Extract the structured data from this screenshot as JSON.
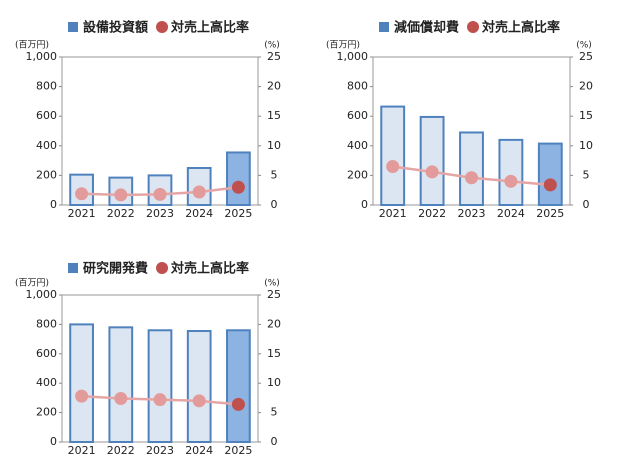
{
  "chart_data": [
    {
      "type": "bar",
      "y_unit": "(百万円)",
      "y2_unit": "(%)",
      "categories": [
        "2021",
        "2022",
        "2023",
        "2024",
        "2025"
      ],
      "series": [
        {
          "name": "設備投資額",
          "type": "bar",
          "color": "#4f81bd",
          "colors": [
            "#dce6f2",
            "#dce6f2",
            "#dce6f2",
            "#dce6f2",
            "#8db3e2"
          ],
          "values": [
            205,
            185,
            200,
            250,
            355
          ]
        },
        {
          "name": "対売上高比率",
          "type": "line",
          "axis": "y2",
          "color": "#c0504d",
          "line_color": "#e6a5a5",
          "colors": [
            "#e39a9a",
            "#e39a9a",
            "#e39a9a",
            "#e39a9a",
            "#c0504d"
          ],
          "values": [
            1.9,
            1.7,
            1.8,
            2.2,
            3.0
          ]
        }
      ],
      "ylim": [
        0,
        1000
      ],
      "yticks": [
        0,
        200,
        400,
        600,
        800,
        {
          "value": 1000,
          "label": "1,000"
        }
      ],
      "y2lim": [
        0,
        25
      ],
      "y2ticks": [
        0,
        5,
        10,
        15,
        20,
        25
      ]
    },
    {
      "type": "bar",
      "y_unit": "(百万円)",
      "y2_unit": "(%)",
      "categories": [
        "2021",
        "2022",
        "2023",
        "2024",
        "2025"
      ],
      "series": [
        {
          "name": "減価償却費",
          "type": "bar",
          "color": "#4f81bd",
          "colors": [
            "#dce6f2",
            "#dce6f2",
            "#dce6f2",
            "#dce6f2",
            "#8db3e2"
          ],
          "values": [
            665,
            595,
            490,
            440,
            415
          ]
        },
        {
          "name": "対売上高比率",
          "type": "line",
          "axis": "y2",
          "color": "#c0504d",
          "line_color": "#e6a5a5",
          "colors": [
            "#e39a9a",
            "#e39a9a",
            "#e39a9a",
            "#e39a9a",
            "#c0504d"
          ],
          "values": [
            6.5,
            5.6,
            4.6,
            4.0,
            3.4
          ]
        }
      ],
      "ylim": [
        0,
        1000
      ],
      "yticks": [
        0,
        200,
        400,
        600,
        800,
        {
          "value": 1000,
          "label": "1,000"
        }
      ],
      "y2lim": [
        0,
        25
      ],
      "y2ticks": [
        0,
        5,
        10,
        15,
        20,
        25
      ]
    },
    {
      "type": "bar",
      "y_unit": "(百万円)",
      "y2_unit": "(%)",
      "categories": [
        "2021",
        "2022",
        "2023",
        "2024",
        "2025"
      ],
      "series": [
        {
          "name": "研究開発費",
          "type": "bar",
          "color": "#4f81bd",
          "colors": [
            "#dce6f2",
            "#dce6f2",
            "#dce6f2",
            "#dce6f2",
            "#8db3e2"
          ],
          "values": [
            800,
            780,
            760,
            755,
            760
          ]
        },
        {
          "name": "対売上高比率",
          "type": "line",
          "axis": "y2",
          "color": "#c0504d",
          "line_color": "#e6a5a5",
          "colors": [
            "#e39a9a",
            "#e39a9a",
            "#e39a9a",
            "#e39a9a",
            "#c0504d"
          ],
          "values": [
            7.8,
            7.4,
            7.2,
            7.0,
            6.4
          ]
        }
      ],
      "ylim": [
        0,
        1000
      ],
      "yticks": [
        0,
        200,
        400,
        600,
        800,
        {
          "value": 1000,
          "label": "1,000"
        }
      ],
      "y2lim": [
        0,
        25
      ],
      "y2ticks": [
        0,
        5,
        10,
        15,
        20,
        25
      ]
    }
  ]
}
